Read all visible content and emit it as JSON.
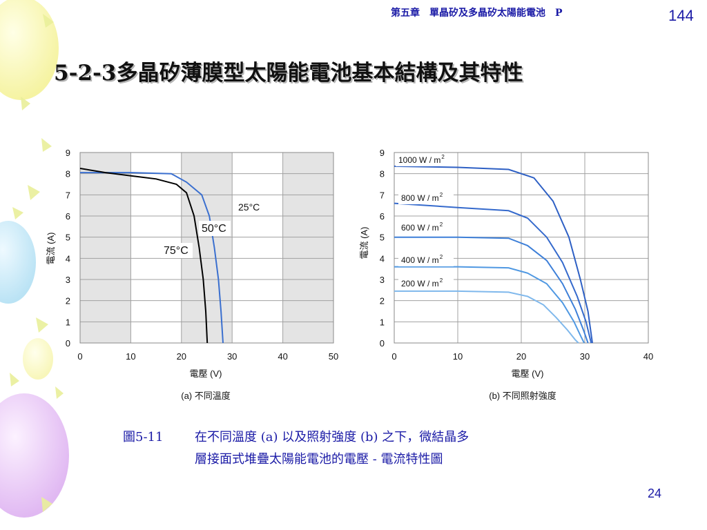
{
  "header": {
    "chapter": "第五章　單晶矽及多晶矽太陽能電池",
    "letter": "P",
    "page_top": "144"
  },
  "title": "5-2-3多晶矽薄膜型太陽能電池基本結構及其特性",
  "chart_data": [
    {
      "type": "line",
      "subtitle": "(a) 不同溫度",
      "xlabel": "電壓 (V)",
      "ylabel": "電流 (A)",
      "xlim": [
        0,
        50
      ],
      "ylim": [
        0,
        9
      ],
      "xticks": [
        0,
        10,
        20,
        30,
        40,
        50
      ],
      "yticks": [
        0,
        1,
        2,
        3,
        4,
        5,
        6,
        7,
        8,
        9
      ],
      "background": "alternating gray/white vertical bands",
      "series": [
        {
          "name": "25°C",
          "color": "#3a6fcf",
          "points": [
            [
              0,
              8.05
            ],
            [
              10,
              8.05
            ],
            [
              18,
              8.0
            ],
            [
              21,
              7.6
            ],
            [
              24,
              7.0
            ],
            [
              25.5,
              6.0
            ],
            [
              26.5,
              4.5
            ],
            [
              27.3,
              3.0
            ],
            [
              27.8,
              1.5
            ],
            [
              28.2,
              0
            ]
          ]
        },
        {
          "name": "50°C",
          "color": "#3a6fcf",
          "points": []
        },
        {
          "name": "75°C",
          "color": "#000000",
          "points": [
            [
              0,
              8.25
            ],
            [
              5,
              8.05
            ],
            [
              10,
              7.9
            ],
            [
              15,
              7.75
            ],
            [
              19,
              7.5
            ],
            [
              21,
              7.1
            ],
            [
              22.5,
              6.0
            ],
            [
              23.5,
              4.5
            ],
            [
              24.3,
              3.0
            ],
            [
              24.8,
              1.5
            ],
            [
              25.1,
              0
            ]
          ]
        }
      ]
    },
    {
      "type": "line",
      "subtitle": "(b) 不同照射強度",
      "xlabel": "電壓 (V)",
      "ylabel": "電流 (A)",
      "xlim": [
        0,
        40
      ],
      "ylim": [
        0,
        9
      ],
      "xticks": [
        0,
        10,
        20,
        30,
        40
      ],
      "yticks": [
        0,
        1,
        2,
        3,
        4,
        5,
        6,
        7,
        8,
        9
      ],
      "grid": true,
      "series": [
        {
          "name": "1000 W / m",
          "sup": "2",
          "color": "#2d5fc4",
          "points": [
            [
              0,
              8.35
            ],
            [
              10,
              8.3
            ],
            [
              18,
              8.2
            ],
            [
              22,
              7.8
            ],
            [
              25,
              6.7
            ],
            [
              27.5,
              5.0
            ],
            [
              29.3,
              3.0
            ],
            [
              30.5,
              1.5
            ],
            [
              31.2,
              0
            ]
          ]
        },
        {
          "name": "800 W / m",
          "sup": "2",
          "color": "#3469cc",
          "points": [
            [
              0,
              6.6
            ],
            [
              10,
              6.4
            ],
            [
              18,
              6.25
            ],
            [
              21,
              5.9
            ],
            [
              24,
              5.0
            ],
            [
              26.5,
              3.8
            ],
            [
              28.8,
              2.2
            ],
            [
              30.2,
              1.0
            ],
            [
              31.0,
              0
            ]
          ]
        },
        {
          "name": "600 W / m",
          "sup": "2",
          "color": "#3d7fd8",
          "points": [
            [
              0,
              5.0
            ],
            [
              10,
              5.0
            ],
            [
              18,
              4.95
            ],
            [
              21,
              4.6
            ],
            [
              24,
              3.9
            ],
            [
              26.5,
              2.8
            ],
            [
              28.5,
              1.6
            ],
            [
              29.8,
              0.6
            ],
            [
              30.5,
              0
            ]
          ]
        },
        {
          "name": "400 W / m",
          "sup": "2",
          "color": "#4f98e2",
          "points": [
            [
              0,
              3.6
            ],
            [
              10,
              3.6
            ],
            [
              18,
              3.55
            ],
            [
              21,
              3.3
            ],
            [
              24,
              2.8
            ],
            [
              26.5,
              1.9
            ],
            [
              28.3,
              1.0
            ],
            [
              29.4,
              0.3
            ],
            [
              29.9,
              0
            ]
          ]
        },
        {
          "name": "200 W / m",
          "sup": "2",
          "color": "#7fb8ec",
          "points": [
            [
              0,
              2.45
            ],
            [
              10,
              2.45
            ],
            [
              18,
              2.4
            ],
            [
              21,
              2.2
            ],
            [
              23.5,
              1.8
            ],
            [
              25.5,
              1.2
            ],
            [
              27.3,
              0.6
            ],
            [
              28.5,
              0.15
            ],
            [
              29.0,
              0
            ]
          ]
        }
      ]
    }
  ],
  "caption": {
    "number": "圖5-11",
    "line1": "在不同溫度 (a) 以及照射強度 (b) 之下，微結晶多",
    "line2": "層接面式堆疊太陽能電池的電壓 - 電流特性圖"
  },
  "page_bottom": "24",
  "colors": {
    "header_text": "#1a1aa6",
    "band_gray": "#e4e4e4",
    "chart_blue": "#3a6fcf"
  }
}
